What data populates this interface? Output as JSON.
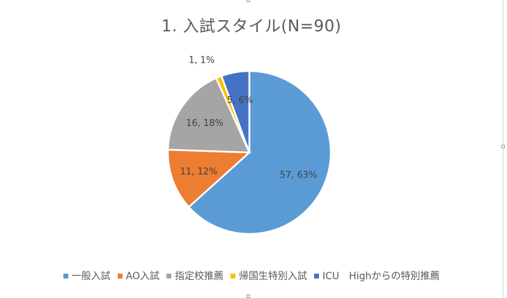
{
  "chart_data": {
    "type": "pie",
    "title": "1. 入試スタイル(N=90)",
    "start_angle_deg": 0,
    "direction": "clockwise",
    "legend_position": "bottom",
    "slices": [
      {
        "name": "一般入試",
        "value": 57,
        "percent": 63,
        "label": "57, 63%",
        "color": "#5B9BD5"
      },
      {
        "name": "AO入試",
        "value": 11,
        "percent": 12,
        "label": "11, 12%",
        "color": "#ED7D31"
      },
      {
        "name": "指定校推薦",
        "value": 16,
        "percent": 18,
        "label": "16, 18%",
        "color": "#A5A5A5"
      },
      {
        "name": "帰国生特別入試",
        "value": 1,
        "percent": 1,
        "label": "1, 1%",
        "color": "#FFC000"
      },
      {
        "name": "ICU　Highからの特別推薦",
        "value": 5,
        "percent": 6,
        "label": "5, 6%",
        "color": "#4472C4"
      }
    ]
  }
}
